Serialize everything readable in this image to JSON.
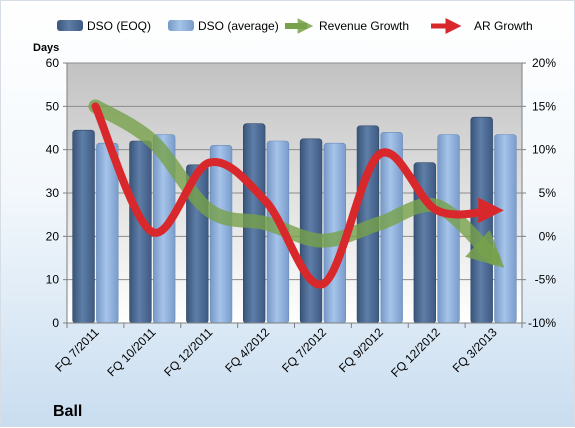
{
  "chart_data": {
    "type": "bar",
    "title": "",
    "company": "Ball",
    "ylabel": "Days",
    "ylim": [
      0,
      60
    ],
    "yticks": [
      0,
      10,
      20,
      30,
      40,
      50,
      60
    ],
    "y2lim": [
      -10,
      20
    ],
    "y2ticks": [
      "-10%",
      "-5%",
      "0%",
      "5%",
      "10%",
      "15%",
      "20%"
    ],
    "y2tick_values": [
      -10,
      -5,
      0,
      5,
      10,
      15,
      20
    ],
    "categories": [
      "FQ 7/2011",
      "FQ 10/2011",
      "FQ 12/2011",
      "FQ 4/2012",
      "FQ 7/2012",
      "FQ 9/2012",
      "FQ 12/2012",
      "FQ 3/2013"
    ],
    "grid": true,
    "legend_position": "top",
    "series": [
      {
        "name": "DSO (EOQ)",
        "kind": "bar",
        "axis": "left",
        "color": "#4f6d96",
        "values": [
          44.5,
          42,
          36.5,
          46,
          42.5,
          45.5,
          37,
          47.5
        ]
      },
      {
        "name": "DSO (average)",
        "kind": "bar",
        "axis": "left",
        "color": "#8eb0dc",
        "values": [
          41.5,
          43.5,
          41,
          42,
          41.5,
          44,
          43.5,
          43.5
        ]
      },
      {
        "name": "Revenue Growth",
        "kind": "line",
        "axis": "right",
        "color": "#77a14a",
        "values": [
          15,
          11,
          3,
          1.5,
          -0.5,
          1.5,
          3.5,
          -2.5
        ]
      },
      {
        "name": "AR Growth",
        "kind": "line",
        "axis": "right",
        "color": "#d8282c",
        "values": [
          15,
          0.5,
          8.5,
          4,
          -5.5,
          9.5,
          3,
          3
        ]
      }
    ]
  }
}
